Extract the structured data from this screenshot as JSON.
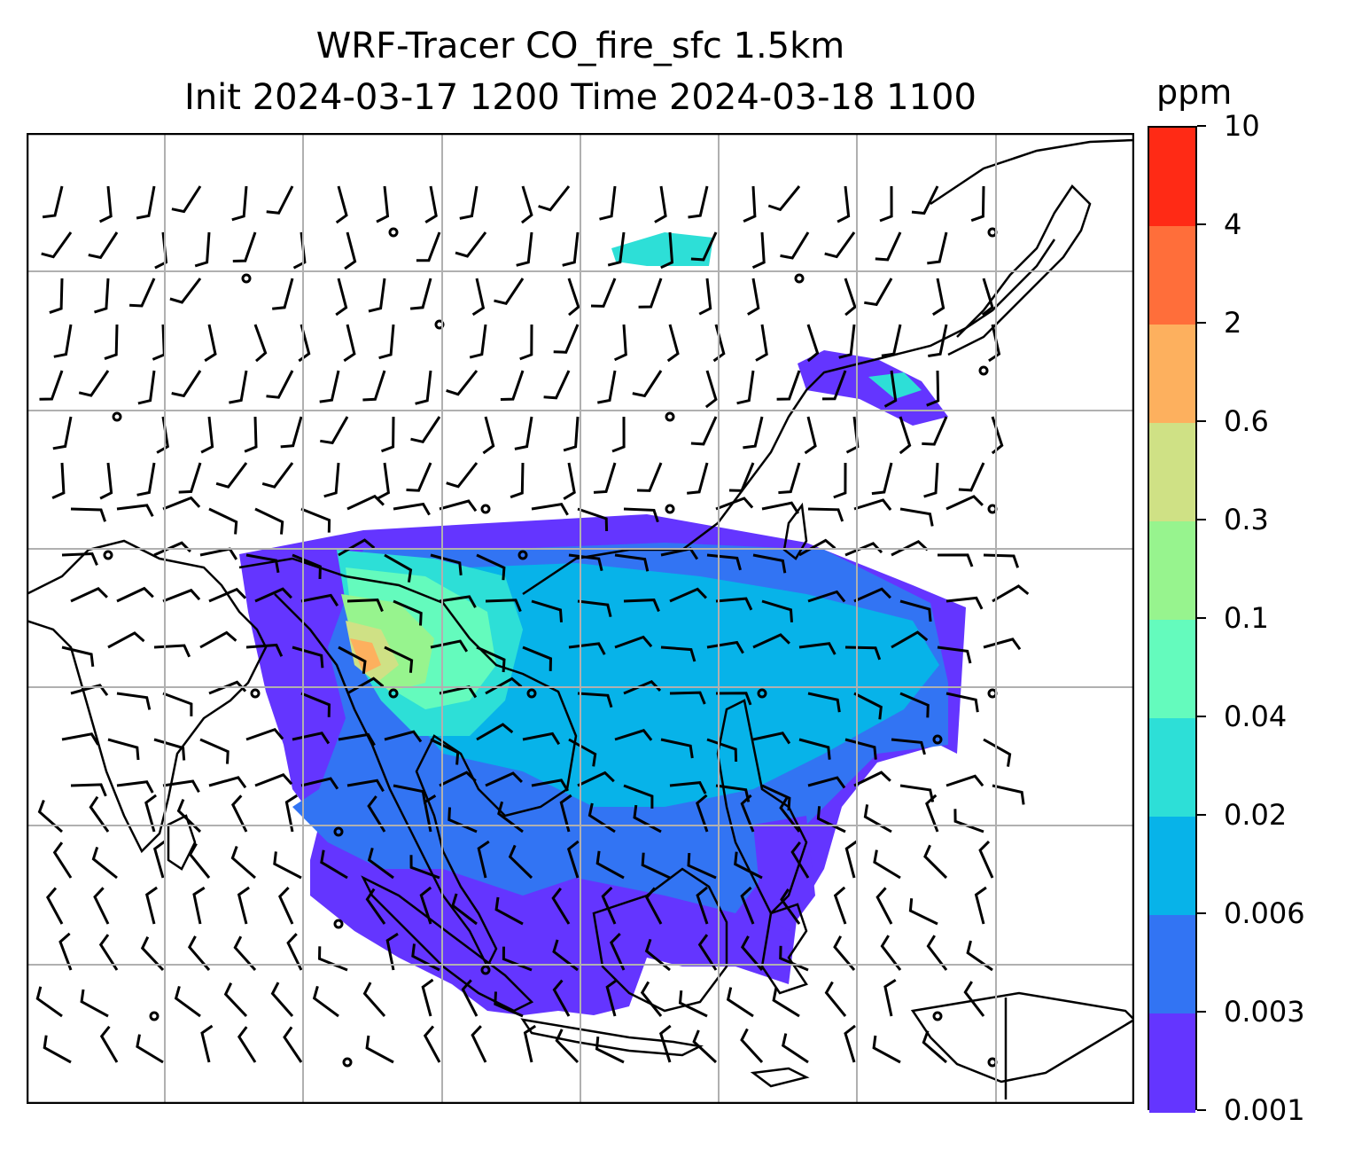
{
  "title": {
    "line1": "WRF-Tracer CO_fire_sfc 1.5km",
    "line2": "Init 2024-03-17 1200 Time 2024-03-18 1100"
  },
  "colorbar": {
    "unit": "ppm",
    "ticks": [
      "10",
      "4",
      "2",
      "0.6",
      "0.3",
      "0.1",
      "0.04",
      "0.02",
      "0.006",
      "0.003",
      "0.001"
    ],
    "colors": [
      "#ff2a15",
      "#ff6e3a",
      "#fdb05e",
      "#cfe185",
      "#97f48e",
      "#64fbbd",
      "#2ddfd7",
      "#07b3e9",
      "#3274f3",
      "#6435ff"
    ]
  },
  "map": {
    "land_color": "#ffffff",
    "coastline_color": "#000000",
    "gridline_color": "#b0b0b0"
  }
}
